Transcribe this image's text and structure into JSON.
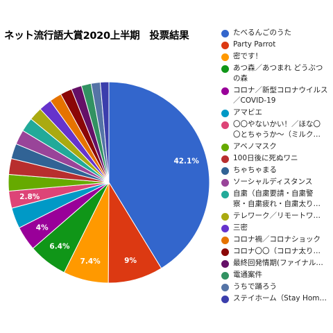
{
  "chart_data": {
    "type": "pie",
    "title": "ネット流行語大賞2020上半期　投票結果",
    "slices": [
      {
        "label": "たべるんごのうた",
        "value": 42.1,
        "color": "#3366cc",
        "data_label": "42.1%"
      },
      {
        "label": "Party Parrot",
        "value": 9.0,
        "color": "#dc3912",
        "data_label": "9%"
      },
      {
        "label": "密です！",
        "value": 7.4,
        "color": "#ff9900",
        "data_label": "7.4%"
      },
      {
        "label": "あつ森／あつまれ どうぶつ\nの森",
        "value": 6.4,
        "color": "#109618",
        "data_label": "6.4%"
      },
      {
        "label": "コロナ／新型コロナウイルス\n／COVID-19",
        "value": 4.0,
        "color": "#990099",
        "data_label": "4%"
      },
      {
        "label": "アマビエ",
        "value": 3.4,
        "color": "#0099c6",
        "data_label": ""
      },
      {
        "label": "〇〇やないかい！／ほな〇\n〇とちゃうか～（ミルク…",
        "value": 2.8,
        "color": "#dd4477",
        "data_label": "2.8%"
      },
      {
        "label": "アベノマスク",
        "value": 2.7,
        "color": "#66aa00",
        "data_label": ""
      },
      {
        "label": "100日後に死ぬワニ",
        "value": 2.6,
        "color": "#b82e2e",
        "data_label": ""
      },
      {
        "label": "ちゃちゃまる",
        "value": 2.5,
        "color": "#316395",
        "data_label": ""
      },
      {
        "label": "ソーシャルディスタンス",
        "value": 2.4,
        "color": "#994499",
        "data_label": ""
      },
      {
        "label": "自粛（自粛要請・自粛警\n察・自粛疲れ・自粛太り…",
        "value": 2.3,
        "color": "#22aa99",
        "data_label": ""
      },
      {
        "label": "テレワーク／リモートワ…",
        "value": 2.2,
        "color": "#aaaa11",
        "data_label": ""
      },
      {
        "label": "三密",
        "value": 2.1,
        "color": "#6633cc",
        "data_label": ""
      },
      {
        "label": "コロナ禍／コロナショック",
        "value": 2.0,
        "color": "#e67300",
        "data_label": ""
      },
      {
        "label": "コロナ〇〇（コロナ太り…",
        "value": 1.9,
        "color": "#8b0707",
        "data_label": ""
      },
      {
        "label": "最終回発情期(ファイナル…",
        "value": 1.7,
        "color": "#651067",
        "data_label": ""
      },
      {
        "label": "電通案件",
        "value": 1.6,
        "color": "#329262",
        "data_label": ""
      },
      {
        "label": "うちで踊ろう",
        "value": 1.5,
        "color": "#5574a6",
        "data_label": ""
      },
      {
        "label": "ステイホーム（Stay Hom…",
        "value": 1.4,
        "color": "#3b3eac",
        "data_label": ""
      }
    ]
  }
}
